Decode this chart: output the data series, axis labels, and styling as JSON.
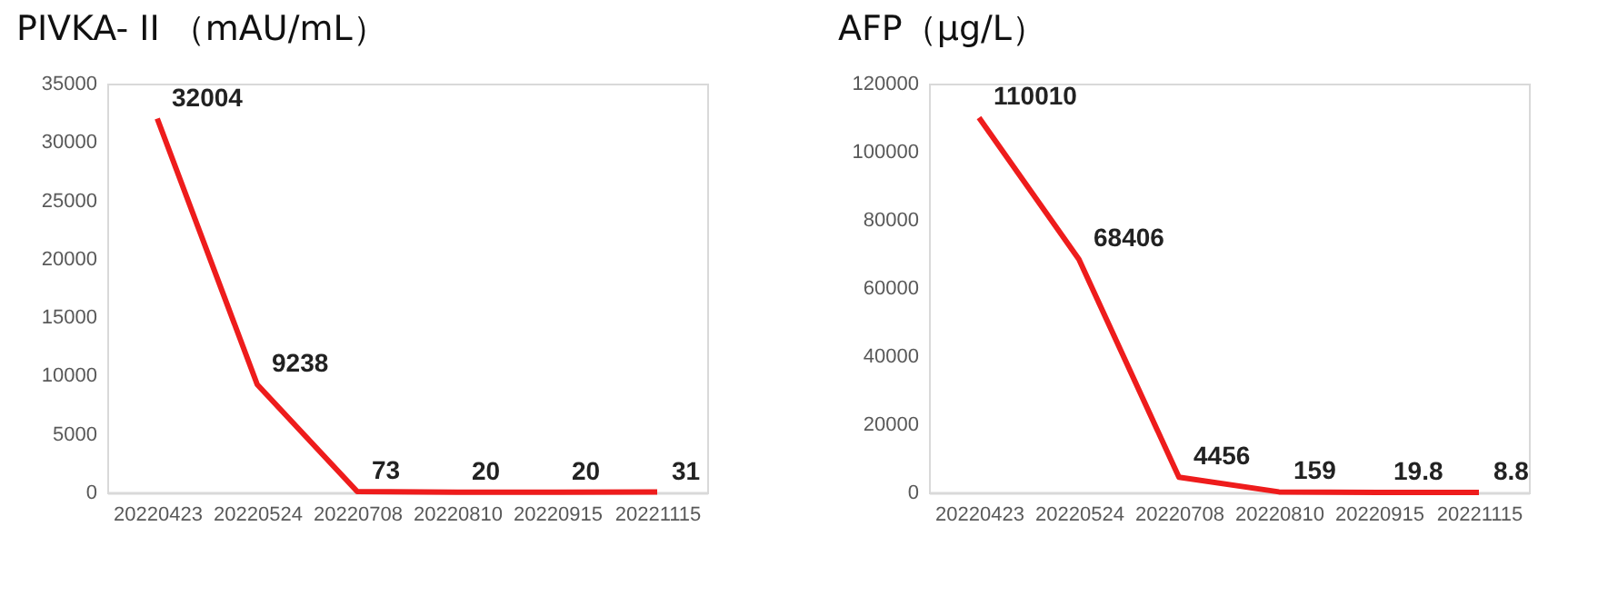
{
  "chart_data": [
    {
      "type": "line",
      "title": "PIVKA- II （mAU/mL）",
      "categories": [
        "20220423",
        "20220524",
        "20220708",
        "20220810",
        "20220915",
        "20221115"
      ],
      "series": [
        {
          "color": "#ee1c1c",
          "values": [
            32004,
            9238,
            73,
            20,
            20,
            31
          ]
        }
      ],
      "ylim": [
        0,
        35000
      ],
      "yticks": [
        0,
        5000,
        10000,
        15000,
        20000,
        25000,
        30000,
        35000
      ],
      "grid": false,
      "legend": false,
      "data_labels": true,
      "marker": "none"
    },
    {
      "type": "line",
      "title": "AFP（μg/L）",
      "categories": [
        "20220423",
        "20220524",
        "20220708",
        "20220810",
        "20220915",
        "20221115"
      ],
      "series": [
        {
          "color": "#ee1c1c",
          "values": [
            110010,
            68406,
            4456,
            159,
            19.8,
            8.8
          ]
        }
      ],
      "ylim": [
        0,
        120000
      ],
      "yticks": [
        0,
        20000,
        40000,
        60000,
        80000,
        100000,
        120000
      ],
      "grid": false,
      "legend": false,
      "data_labels": true,
      "marker": "none"
    }
  ]
}
